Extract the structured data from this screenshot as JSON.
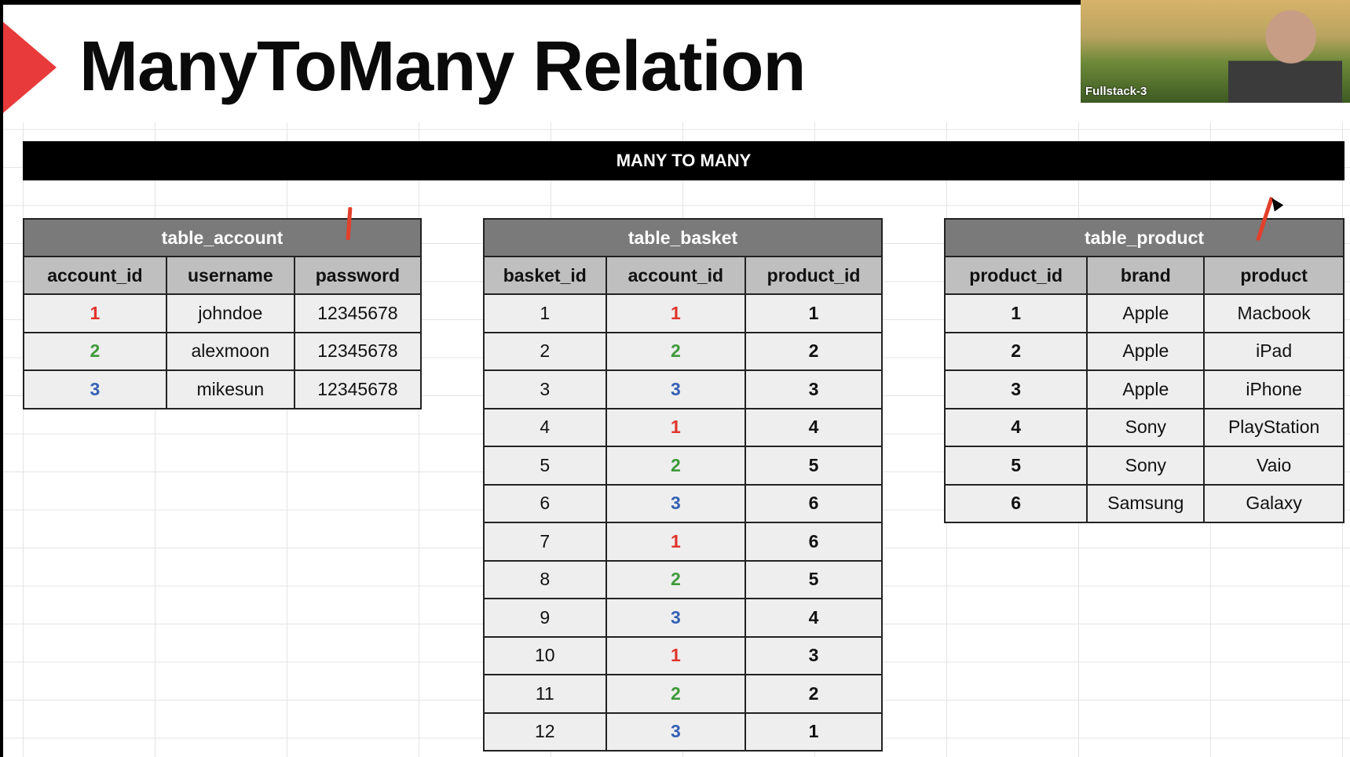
{
  "slide": {
    "title": "ManyToMany Relation",
    "banner": "MANY TO MANY"
  },
  "video": {
    "label": "Fullstack-3"
  },
  "colors": {
    "id1": "#e0342b",
    "id2": "#3e9a3a",
    "id3": "#3461b4",
    "accent_arrow": "#e83a3a"
  },
  "table_account": {
    "caption": "table_account",
    "columns": [
      "account_id",
      "username",
      "password"
    ],
    "rows": [
      [
        "1",
        "johndoe",
        "12345678"
      ],
      [
        "2",
        "alexmoon",
        "12345678"
      ],
      [
        "3",
        "mikesun",
        "12345678"
      ]
    ]
  },
  "table_basket": {
    "caption": "table_basket",
    "columns": [
      "basket_id",
      "account_id",
      "product_id"
    ],
    "rows": [
      [
        "1",
        "1",
        "1"
      ],
      [
        "2",
        "2",
        "2"
      ],
      [
        "3",
        "3",
        "3"
      ],
      [
        "4",
        "1",
        "4"
      ],
      [
        "5",
        "2",
        "5"
      ],
      [
        "6",
        "3",
        "6"
      ],
      [
        "7",
        "1",
        "6"
      ],
      [
        "8",
        "2",
        "5"
      ],
      [
        "9",
        "3",
        "4"
      ],
      [
        "10",
        "1",
        "3"
      ],
      [
        "11",
        "2",
        "2"
      ],
      [
        "12",
        "3",
        "1"
      ]
    ]
  },
  "table_product": {
    "caption": "table_product",
    "columns": [
      "product_id",
      "brand",
      "product"
    ],
    "rows": [
      [
        "1",
        "Apple",
        "Macbook"
      ],
      [
        "2",
        "Apple",
        "iPad"
      ],
      [
        "3",
        "Apple",
        "iPhone"
      ],
      [
        "4",
        "Sony",
        "PlayStation"
      ],
      [
        "5",
        "Sony",
        "Vaio"
      ],
      [
        "6",
        "Samsung",
        "Galaxy"
      ]
    ]
  }
}
